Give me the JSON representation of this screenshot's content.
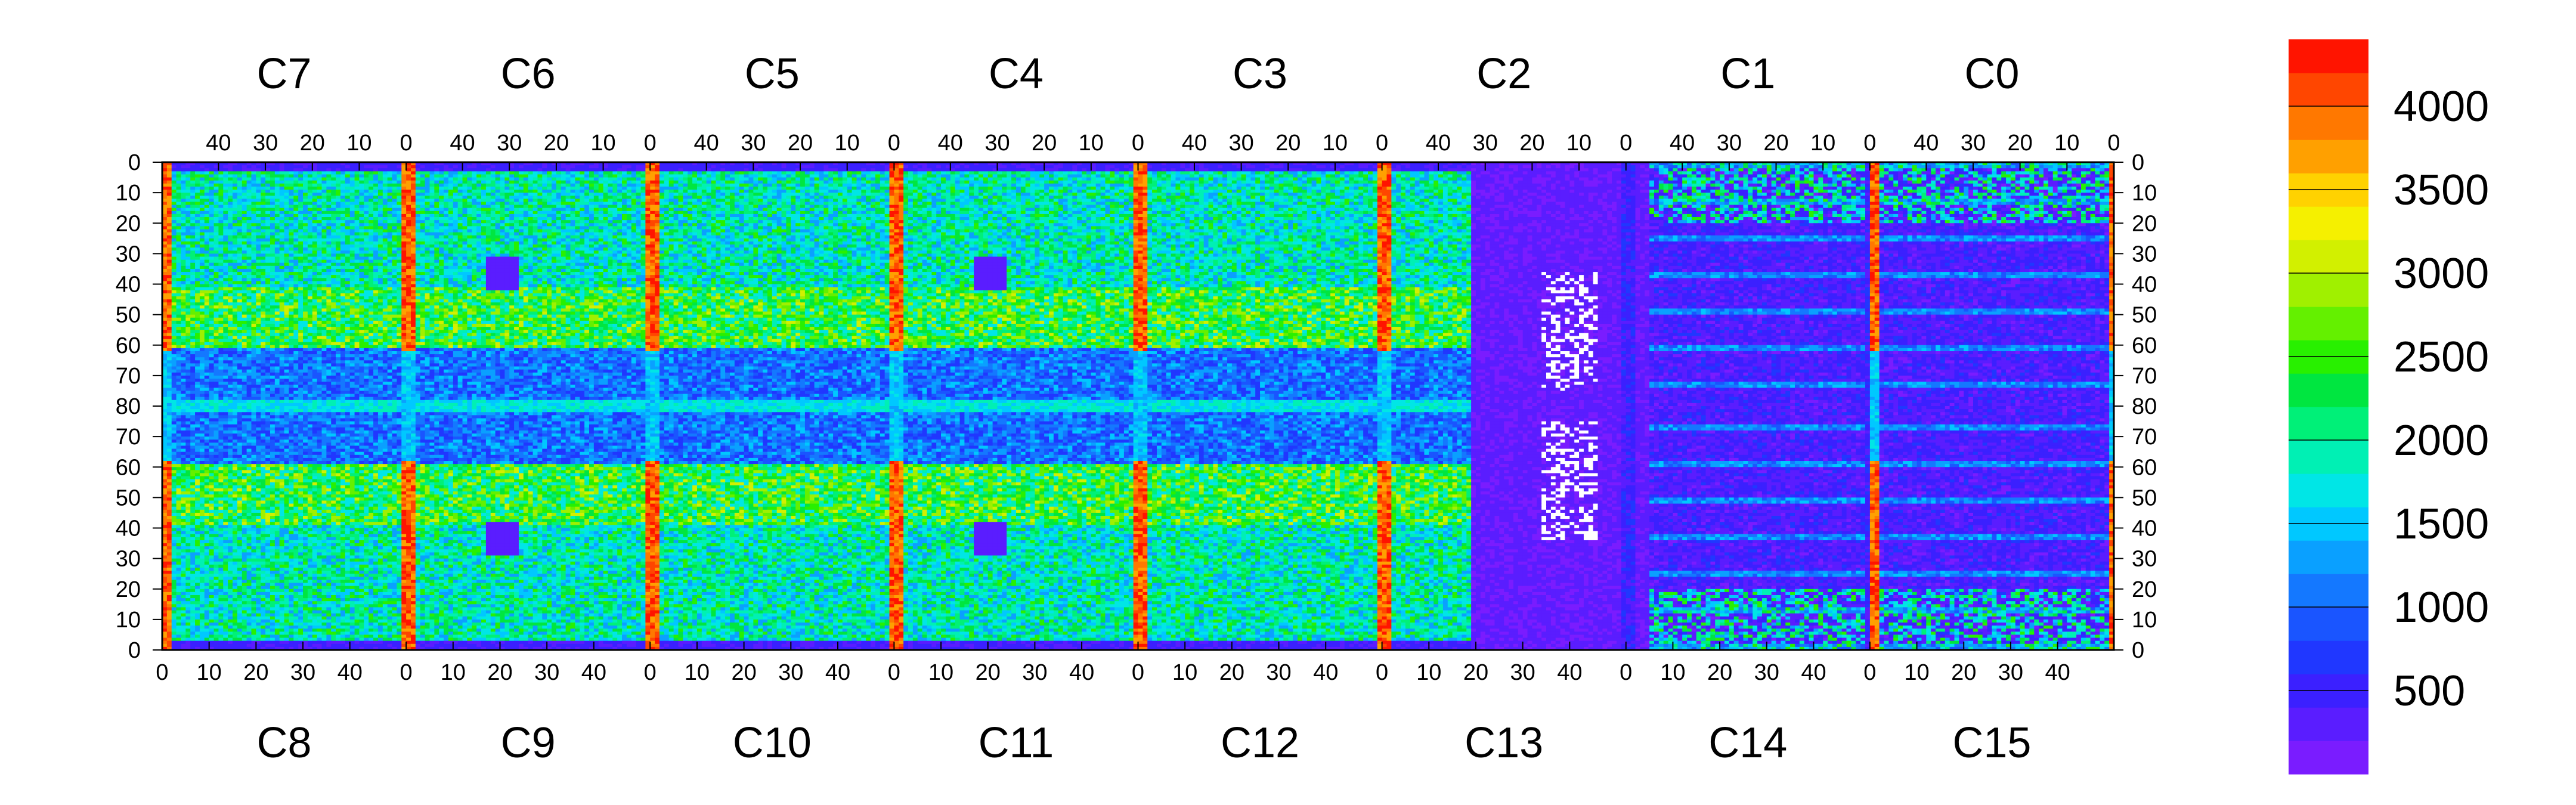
{
  "chart_data": {
    "type": "heatmap",
    "title": "",
    "top_chip_labels": [
      "C7",
      "C6",
      "C5",
      "C4",
      "C3",
      "C2",
      "C1",
      "C0"
    ],
    "bottom_chip_labels": [
      "C8",
      "C9",
      "C10",
      "C11",
      "C12",
      "C13",
      "C14",
      "C15"
    ],
    "top_x_ticks": [
      "40",
      "30",
      "20",
      "10",
      "0"
    ],
    "bottom_x_ticks": [
      "0",
      "10",
      "20",
      "30",
      "40"
    ],
    "y_ticks": [
      "0",
      "10",
      "20",
      "30",
      "40",
      "50",
      "60",
      "70",
      "80",
      "70",
      "60",
      "50",
      "40",
      "30",
      "20",
      "10",
      "0"
    ],
    "colorbar": {
      "min": 0,
      "max": 4400,
      "tick_values": [
        500,
        1000,
        1500,
        2000,
        2500,
        3000,
        3500,
        4000
      ],
      "tick_labels": [
        "500",
        "1000",
        "1500",
        "2000",
        "2500",
        "3000",
        "3500",
        "4000"
      ],
      "colors": [
        "#7a1cff",
        "#5a1dff",
        "#3b20ff",
        "#2037ff",
        "#1a55ff",
        "#1478ff",
        "#0aa0ff",
        "#00c8ff",
        "#00e6e6",
        "#00f0b4",
        "#00f078",
        "#00e640",
        "#28f000",
        "#64f000",
        "#a0f000",
        "#d2f000",
        "#f5f000",
        "#ffd200",
        "#ffa000",
        "#ff7800",
        "#ff4600",
        "#ff1400"
      ]
    },
    "chips_per_row": 8,
    "columns_per_chip": 52,
    "rows_per_half": 80,
    "notes_hot_columns": "Chip-boundary columns show high values (up to ~4400); central region near C13/C14 is low (~0-500) with some empty (white) pixels."
  }
}
